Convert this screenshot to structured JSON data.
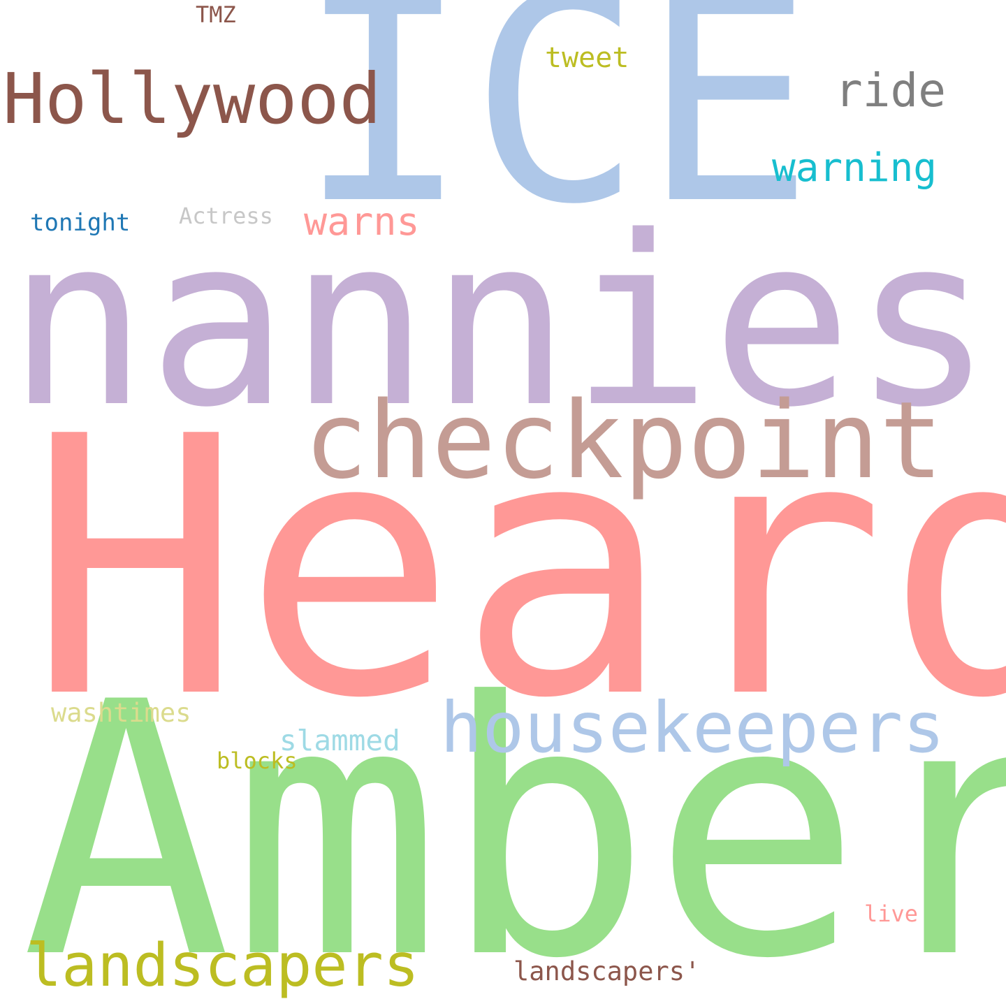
{
  "words": [
    {
      "key": "ice",
      "text": "ICE",
      "color": "#aec7e8"
    },
    {
      "key": "nannies",
      "text": "nannies",
      "color": "#c5b0d5"
    },
    {
      "key": "heard",
      "text": "Heard",
      "color": "#ff9896"
    },
    {
      "key": "amber",
      "text": "Amber",
      "color": "#98df8a"
    },
    {
      "key": "checkpoint",
      "text": "checkpoint",
      "color": "#c49c94"
    },
    {
      "key": "housekeepers",
      "text": "housekeepers",
      "color": "#aec7e8"
    },
    {
      "key": "hollywood",
      "text": "Hollywood",
      "color": "#8c564b"
    },
    {
      "key": "landscapers",
      "text": "landscapers",
      "color": "#bcbd22"
    },
    {
      "key": "ride",
      "text": "ride",
      "color": "#7f7f7f"
    },
    {
      "key": "warning",
      "text": "warning",
      "color": "#17becf"
    },
    {
      "key": "warns",
      "text": "warns",
      "color": "#ff9896"
    },
    {
      "key": "tweet",
      "text": "tweet",
      "color": "#bcbd22"
    },
    {
      "key": "slammed",
      "text": "slammed",
      "color": "#9edae5"
    },
    {
      "key": "washtimes",
      "text": "washtimes",
      "color": "#dbdb8d"
    },
    {
      "key": "tonight",
      "text": "tonight",
      "color": "#1f77b4"
    },
    {
      "key": "actress",
      "text": "Actress",
      "color": "#c7c7c7"
    },
    {
      "key": "tmz",
      "text": "TMZ",
      "color": "#8c564b"
    },
    {
      "key": "blocks",
      "text": "blocks",
      "color": "#bcbd22"
    },
    {
      "key": "live",
      "text": "live",
      "color": "#ff9896"
    },
    {
      "key": "landscapers2",
      "text": "landscapers'",
      "color": "#8c564b"
    }
  ]
}
